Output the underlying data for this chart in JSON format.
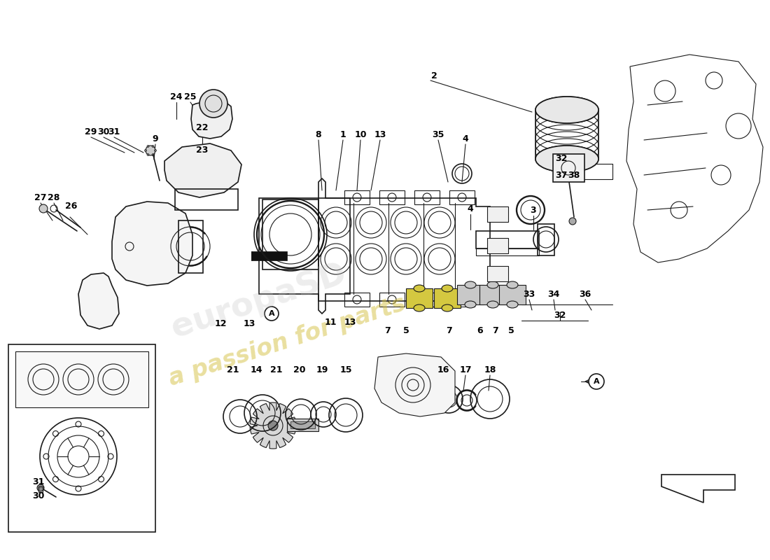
{
  "bg_color": "#ffffff",
  "line_color": "#1a1a1a",
  "watermark_text": "a passion for parts",
  "watermark_color": "#d4c040",
  "figsize": [
    11.0,
    8.0
  ],
  "dpi": 100,
  "labels": [
    [
      "2",
      620,
      108
    ],
    [
      "1",
      490,
      192
    ],
    [
      "8",
      455,
      192
    ],
    [
      "10",
      515,
      192
    ],
    [
      "13",
      543,
      192
    ],
    [
      "4",
      665,
      198
    ],
    [
      "35",
      626,
      192
    ],
    [
      "22",
      289,
      183
    ],
    [
      "23",
      289,
      215
    ],
    [
      "24",
      252,
      138
    ],
    [
      "25",
      272,
      138
    ],
    [
      "9",
      222,
      198
    ],
    [
      "29",
      130,
      188
    ],
    [
      "30",
      148,
      188
    ],
    [
      "31",
      163,
      188
    ],
    [
      "27",
      58,
      282
    ],
    [
      "28",
      77,
      282
    ],
    [
      "26",
      102,
      294
    ],
    [
      "12",
      315,
      462
    ],
    [
      "13",
      356,
      462
    ],
    [
      "11",
      472,
      460
    ],
    [
      "13",
      500,
      460
    ],
    [
      "3",
      762,
      300
    ],
    [
      "4",
      672,
      298
    ],
    [
      "32",
      802,
      226
    ],
    [
      "37",
      802,
      250
    ],
    [
      "38",
      820,
      250
    ],
    [
      "33",
      756,
      420
    ],
    [
      "34",
      791,
      420
    ],
    [
      "36",
      836,
      420
    ],
    [
      "32",
      800,
      450
    ],
    [
      "7",
      554,
      472
    ],
    [
      "5",
      580,
      472
    ],
    [
      "7",
      641,
      472
    ],
    [
      "6",
      686,
      472
    ],
    [
      "7",
      708,
      472
    ],
    [
      "5",
      730,
      472
    ],
    [
      "21",
      333,
      528
    ],
    [
      "14",
      366,
      528
    ],
    [
      "21",
      395,
      528
    ],
    [
      "20",
      428,
      528
    ],
    [
      "19",
      460,
      528
    ],
    [
      "15",
      494,
      528
    ],
    [
      "16",
      633,
      528
    ],
    [
      "17",
      665,
      528
    ],
    [
      "18",
      700,
      528
    ],
    [
      "31",
      55,
      688
    ],
    [
      "30",
      55,
      708
    ]
  ]
}
